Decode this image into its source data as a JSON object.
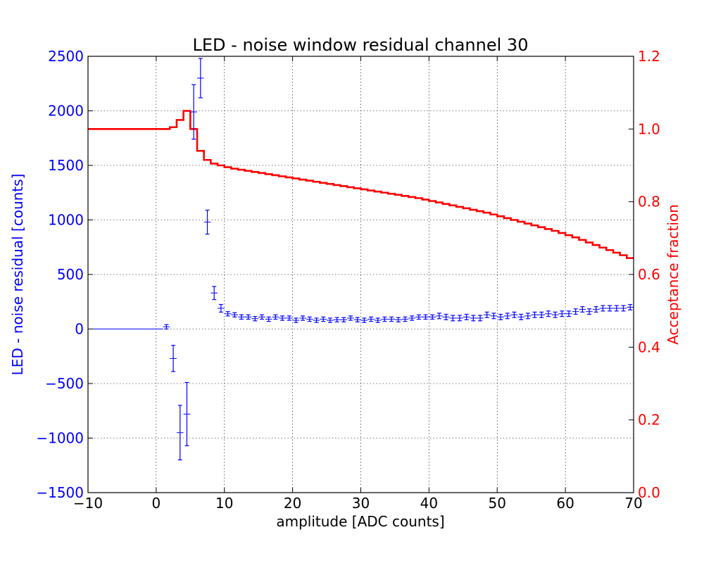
{
  "chart_data": {
    "type": "line",
    "title": "LED - noise window residual channel 30",
    "xlabel": "amplitude [ADC counts]",
    "ylabel_left": "LED - noise residual [counts]",
    "ylabel_right": "Acceptance fraction",
    "xlim": [
      -10,
      70
    ],
    "ylim_left": [
      -1500,
      2500
    ],
    "ylim_right": [
      0.0,
      1.2
    ],
    "grid": true,
    "x_ticks": [
      "−10",
      "0",
      "10",
      "20",
      "30",
      "40",
      "50",
      "60",
      "70"
    ],
    "y_left_ticks": [
      "−1500",
      "−1000",
      "−500",
      "0",
      "500",
      "1000",
      "1500",
      "2000",
      "2500"
    ],
    "y_right_ticks": [
      "0.0",
      "0.2",
      "0.4",
      "0.6",
      "0.8",
      "1.0",
      "1.2"
    ],
    "colors": {
      "residual": "#0000ff",
      "acceptance": "#ff0000",
      "text": "#000000",
      "grid": "#000000"
    },
    "series": [
      {
        "axis": "left",
        "kind": "errorbar",
        "x": [
          -9.5,
          -8.5,
          -7.5,
          -6.5,
          -5.5,
          -4.5,
          -3.5,
          -2.5,
          -1.5,
          -0.5,
          0.5,
          1.5,
          2.5,
          3.5,
          4.5,
          5.5,
          6.5,
          7.5,
          8.5,
          9.5,
          10.5,
          11.5,
          12.5,
          13.5,
          14.5,
          15.5,
          16.5,
          17.5,
          18.5,
          19.5,
          20.5,
          21.5,
          22.5,
          23.5,
          24.5,
          25.5,
          26.5,
          27.5,
          28.5,
          29.5,
          30.5,
          31.5,
          32.5,
          33.5,
          34.5,
          35.5,
          36.5,
          37.5,
          38.5,
          39.5,
          40.5,
          41.5,
          42.5,
          43.5,
          44.5,
          45.5,
          46.5,
          47.5,
          48.5,
          49.5,
          50.5,
          51.5,
          52.5,
          53.5,
          54.5,
          55.5,
          56.5,
          57.5,
          58.5,
          59.5,
          60.5,
          61.5,
          62.5,
          63.5,
          64.5,
          65.5,
          66.5,
          67.5,
          68.5,
          69.5
        ],
        "y": [
          0,
          0,
          0,
          0,
          0,
          0,
          0,
          0,
          0,
          0,
          0,
          20,
          -270,
          -950,
          -780,
          1990,
          2300,
          980,
          330,
          190,
          140,
          130,
          110,
          110,
          95,
          110,
          90,
          110,
          100,
          100,
          80,
          100,
          90,
          80,
          90,
          80,
          85,
          85,
          100,
          85,
          80,
          90,
          80,
          90,
          90,
          85,
          90,
          100,
          110,
          110,
          110,
          120,
          110,
          100,
          100,
          110,
          100,
          100,
          130,
          120,
          110,
          120,
          130,
          110,
          120,
          130,
          130,
          140,
          130,
          140,
          140,
          160,
          180,
          160,
          180,
          190,
          190,
          190,
          190,
          200
        ],
        "err": [
          0,
          0,
          0,
          0,
          0,
          0,
          0,
          0,
          0,
          0,
          0,
          20,
          120,
          250,
          290,
          250,
          180,
          110,
          60,
          35,
          20,
          20,
          20,
          20,
          20,
          20,
          20,
          20,
          20,
          20,
          20,
          20,
          20,
          20,
          20,
          20,
          20,
          20,
          20,
          20,
          20,
          20,
          20,
          20,
          20,
          20,
          20,
          20,
          20,
          20,
          20,
          25,
          25,
          25,
          25,
          25,
          25,
          25,
          25,
          25,
          25,
          25,
          25,
          25,
          25,
          25,
          25,
          25,
          25,
          25,
          25,
          25,
          25,
          25,
          25,
          25,
          25,
          25,
          25,
          25
        ]
      },
      {
        "axis": "right",
        "kind": "step",
        "edges": [
          -10,
          -9,
          -8,
          -7,
          -6,
          -5,
          -4,
          -3,
          -2,
          -1,
          0,
          1,
          2,
          3,
          4,
          5,
          6,
          7,
          8,
          9,
          10,
          11,
          12,
          13,
          14,
          15,
          16,
          17,
          18,
          19,
          20,
          21,
          22,
          23,
          24,
          25,
          26,
          27,
          28,
          29,
          30,
          31,
          32,
          33,
          34,
          35,
          36,
          37,
          38,
          39,
          40,
          41,
          42,
          43,
          44,
          45,
          46,
          47,
          48,
          49,
          50,
          51,
          52,
          53,
          54,
          55,
          56,
          57,
          58,
          59,
          60,
          61,
          62,
          63,
          64,
          65,
          66,
          67,
          68,
          69,
          70
        ],
        "values": [
          1.0,
          1.0,
          1.0,
          1.0,
          1.0,
          1.0,
          1.0,
          1.0,
          1.0,
          1.0,
          1.0,
          1.0,
          1.005,
          1.025,
          1.05,
          1.0,
          0.94,
          0.915,
          0.905,
          0.9,
          0.895,
          0.891,
          0.888,
          0.885,
          0.882,
          0.879,
          0.876,
          0.873,
          0.87,
          0.867,
          0.864,
          0.861,
          0.858,
          0.855,
          0.852,
          0.849,
          0.846,
          0.843,
          0.84,
          0.837,
          0.834,
          0.831,
          0.828,
          0.825,
          0.822,
          0.819,
          0.816,
          0.813,
          0.81,
          0.806,
          0.802,
          0.798,
          0.794,
          0.79,
          0.786,
          0.782,
          0.778,
          0.774,
          0.77,
          0.765,
          0.76,
          0.755,
          0.75,
          0.745,
          0.74,
          0.735,
          0.73,
          0.725,
          0.72,
          0.714,
          0.708,
          0.702,
          0.695,
          0.688,
          0.681,
          0.674,
          0.667,
          0.66,
          0.653,
          0.645
        ]
      }
    ]
  }
}
